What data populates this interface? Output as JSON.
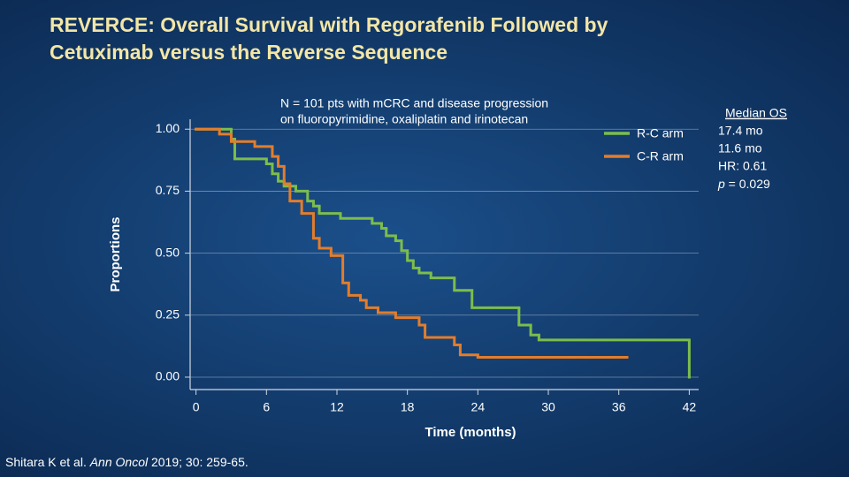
{
  "chart_data": {
    "type": "step",
    "title": [
      "REVERCE: Overall Survival with Regorafenib Followed by",
      "Cetuximab versus the Reverse Sequence"
    ],
    "annotation": [
      "N = 101 pts with mCRC and disease progression",
      "on fluoropyrimidine, oxaliplatin and irinotecan"
    ],
    "x_label": "Time (months)",
    "y_label": "Proportions",
    "xlim": [
      -0.5,
      42.8
    ],
    "ylim": [
      -0.05,
      1.04
    ],
    "xticks": [
      0,
      6,
      12,
      18,
      24,
      30,
      36,
      42
    ],
    "yticks": [
      {
        "value": 1,
        "label": "1.00"
      },
      {
        "value": 0.75,
        "label": "0.75"
      },
      {
        "value": 0.5,
        "label": "0.50"
      },
      {
        "value": 0.25,
        "label": "0.25"
      },
      {
        "value": 0,
        "label": "0.00"
      }
    ],
    "grid": true,
    "series": [
      {
        "name": "R-C arm",
        "color": "#7cbd4b",
        "x": [
          0,
          3.0,
          3.3,
          6.0,
          6.5,
          7.0,
          7.5,
          8.5,
          9.5,
          10.0,
          10.5,
          12.3,
          15.0,
          15.8,
          16.2,
          17.0,
          17.5,
          18.0,
          18.5,
          19.0,
          20.0,
          22.0,
          23.5,
          27.5,
          28.5,
          29.2,
          42.0
        ],
        "values": [
          1.0,
          0.96,
          0.88,
          0.86,
          0.82,
          0.79,
          0.77,
          0.75,
          0.71,
          0.69,
          0.66,
          0.64,
          0.62,
          0.6,
          0.57,
          0.55,
          0.51,
          0.47,
          0.44,
          0.42,
          0.4,
          0.35,
          0.28,
          0.21,
          0.17,
          0.15,
          0.0
        ]
      },
      {
        "name": "C-R arm",
        "color": "#e37d2b",
        "x": [
          0,
          2.0,
          3.0,
          5.0,
          6.5,
          7.0,
          7.5,
          8.0,
          9.0,
          10.0,
          10.5,
          11.5,
          12.5,
          13.0,
          14.0,
          14.5,
          15.5,
          17.0,
          19.0,
          19.5,
          22.0,
          22.5,
          24.0,
          36.7
        ],
        "values": [
          1.0,
          0.98,
          0.95,
          0.93,
          0.89,
          0.85,
          0.78,
          0.71,
          0.66,
          0.56,
          0.52,
          0.49,
          0.38,
          0.33,
          0.31,
          0.28,
          0.26,
          0.24,
          0.21,
          0.16,
          0.13,
          0.09,
          0.08,
          0.08
        ]
      }
    ],
    "median_box": [
      "Median OS",
      "17.4 mo",
      "11.6 mo",
      "HR: 0.61"
    ],
    "p_value": [
      "p",
      " = 0.029"
    ],
    "citation": [
      "Shitara K et al. ",
      "Ann Oncol",
      " 2019; 30: 259-65."
    ]
  }
}
